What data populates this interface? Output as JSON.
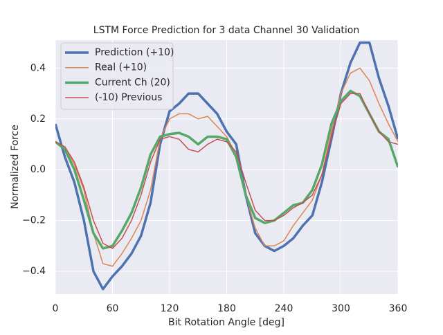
{
  "chart_data": {
    "type": "line",
    "title": "LSTM Force Prediction for 3 data Channel 30 Validation",
    "xlabel": "Bit Rotation Angle [deg]",
    "ylabel": "Normalized Force",
    "x": [
      0,
      10,
      20,
      30,
      40,
      50,
      60,
      70,
      80,
      90,
      100,
      110,
      120,
      130,
      140,
      150,
      160,
      170,
      180,
      190,
      200,
      210,
      220,
      230,
      240,
      250,
      260,
      270,
      280,
      290,
      300,
      310,
      320,
      330,
      340,
      350,
      360
    ],
    "series": [
      {
        "name": "Prediction (+10)",
        "color": "#4c72b0",
        "width": 3.5,
        "values": [
          0.18,
          0.05,
          -0.05,
          -0.2,
          -0.4,
          -0.47,
          -0.42,
          -0.38,
          -0.33,
          -0.26,
          -0.13,
          0.1,
          0.23,
          0.26,
          0.3,
          0.3,
          0.26,
          0.22,
          0.15,
          0.1,
          -0.1,
          -0.25,
          -0.3,
          -0.32,
          -0.3,
          -0.27,
          -0.22,
          -0.18,
          -0.05,
          0.12,
          0.3,
          0.42,
          0.5,
          0.5,
          0.36,
          0.25,
          0.12
        ]
      },
      {
        "name": "Real (+10)",
        "color": "#dd8452",
        "width": 1.5,
        "values": [
          0.11,
          0.09,
          0.02,
          -0.08,
          -0.25,
          -0.37,
          -0.38,
          -0.33,
          -0.27,
          -0.2,
          -0.08,
          0.12,
          0.2,
          0.22,
          0.22,
          0.2,
          0.21,
          0.17,
          0.13,
          0.06,
          -0.1,
          -0.23,
          -0.3,
          -0.3,
          -0.28,
          -0.22,
          -0.17,
          -0.12,
          -0.02,
          0.15,
          0.3,
          0.38,
          0.4,
          0.35,
          0.26,
          0.18,
          0.11
        ]
      },
      {
        "name": "Current Ch (20)",
        "color": "#55a868",
        "width": 3.5,
        "values": [
          0.11,
          0.08,
          0.0,
          -0.12,
          -0.25,
          -0.31,
          -0.3,
          -0.24,
          -0.17,
          -0.07,
          0.06,
          0.13,
          0.14,
          0.145,
          0.13,
          0.1,
          0.13,
          0.13,
          0.12,
          0.05,
          -0.1,
          -0.19,
          -0.21,
          -0.2,
          -0.17,
          -0.14,
          -0.13,
          -0.08,
          0.02,
          0.18,
          0.27,
          0.31,
          0.29,
          0.22,
          0.15,
          0.12,
          0.01
        ]
      },
      {
        "name": "(-10) Previous",
        "color": "#c44e52",
        "width": 1.5,
        "values": [
          0.11,
          0.09,
          0.03,
          -0.07,
          -0.2,
          -0.29,
          -0.31,
          -0.27,
          -0.2,
          -0.1,
          0.03,
          0.12,
          0.13,
          0.12,
          0.08,
          0.07,
          0.1,
          0.12,
          0.11,
          0.07,
          -0.05,
          -0.16,
          -0.2,
          -0.2,
          -0.18,
          -0.15,
          -0.13,
          -0.1,
          -0.02,
          0.13,
          0.26,
          0.3,
          0.3,
          0.22,
          0.15,
          0.11,
          0.1
        ]
      }
    ],
    "xlim": [
      0,
      360
    ],
    "xticks": [
      0,
      60,
      120,
      180,
      240,
      300,
      360
    ],
    "ylim": [
      -0.49,
      0.51
    ],
    "yticks": [
      {
        "value": -0.4,
        "label": "−0.4"
      },
      {
        "value": -0.2,
        "label": "−0.2"
      },
      {
        "value": 0,
        "label": "0.0"
      },
      0.2,
      0.4
    ],
    "grid": true,
    "legend": "upper left"
  }
}
